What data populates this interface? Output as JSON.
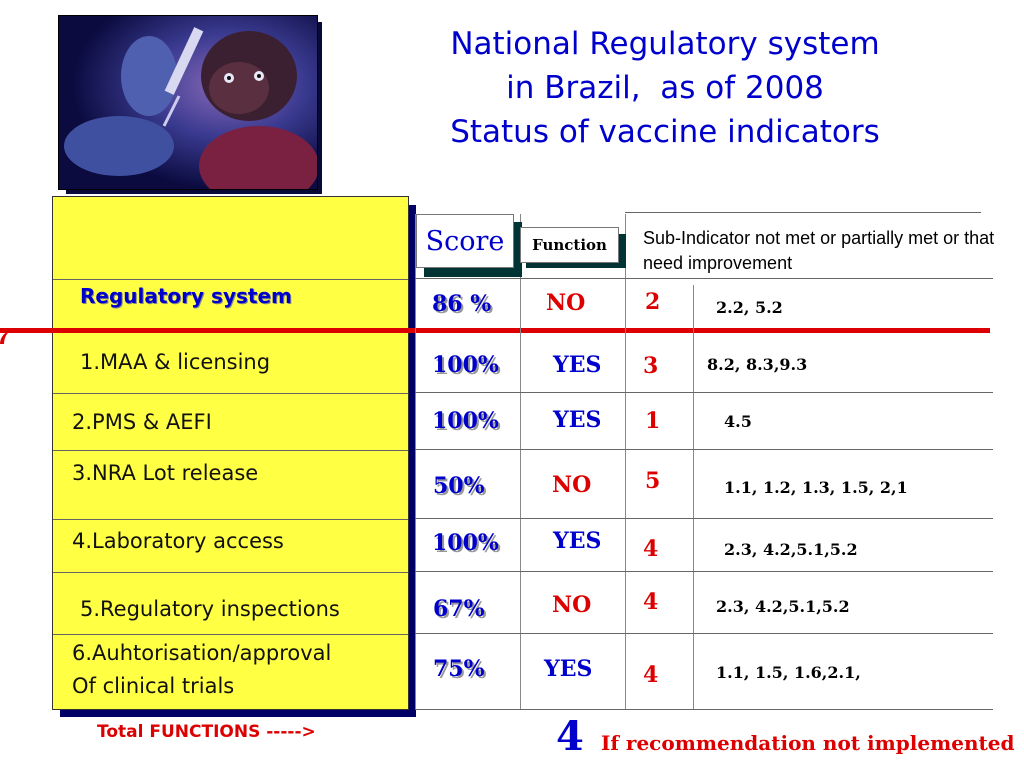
{
  "title": {
    "line1": "National Regulatory system",
    "line2": "in Brazil,  as of 2008",
    "line3": "Status of vaccine indicators"
  },
  "headers": {
    "score": "Score",
    "function": "Function",
    "sub_indicator": "Sub-Indicator not met or partially met or that need improvement"
  },
  "rows": [
    {
      "label": "Regulatory system",
      "score": "86 %",
      "function": "NO",
      "count": "2",
      "sub": "2.2, 5.2"
    },
    {
      "label": "1.MAA & licensing",
      "score": "100%",
      "function": "YES",
      "count": "3",
      "sub": "8.2, 8.3,9.3"
    },
    {
      "label": "2.PMS & AEFI",
      "score": "100%",
      "function": "YES",
      "count": "1",
      "sub": "4.5"
    },
    {
      "label": "3.NRA Lot release",
      "score": "50%",
      "function": "NO",
      "count": "5",
      "sub": "1.1, 1.2, 1.3, 1.5, 2,1"
    },
    {
      "label": "4.Laboratory access",
      "score": "100%",
      "function": "YES",
      "count": "4",
      "sub": "2.3, 4.2,5.1,5.2"
    },
    {
      "label": "5.Regulatory inspections",
      "score": "67%",
      "function": "NO",
      "count": "4",
      "sub": "2.3, 4.2,5.1,5.2"
    },
    {
      "label_line1": "6.Auhtorisation/approval",
      "label_line2": "Of clinical trials",
      "score": "75%",
      "function": "YES",
      "count": "4",
      "sub": "1.1, 1.5, 1.6,2.1,"
    }
  ],
  "footer": {
    "total_label": "Total FUNCTIONS ----->",
    "total_number": "4",
    "note": "If recommendation not implemented"
  },
  "colors": {
    "title_blue": "#0000cc",
    "panel_yellow": "#ffff44",
    "accent_red": "#dd0000"
  }
}
